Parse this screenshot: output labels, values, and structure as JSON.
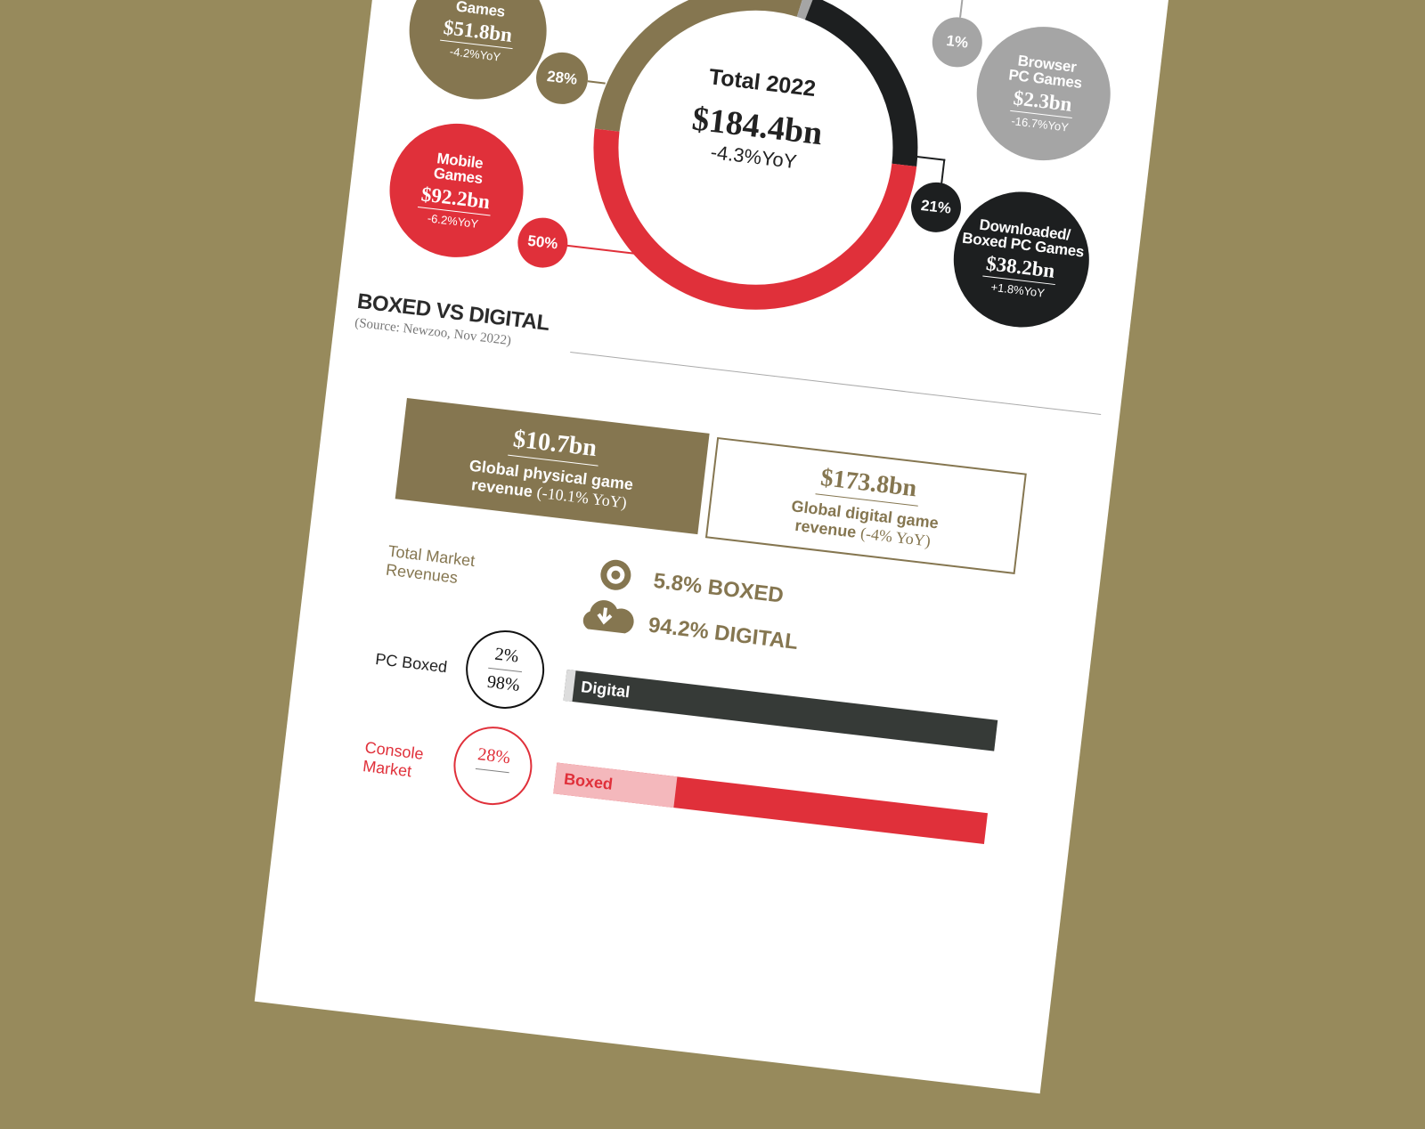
{
  "colors": {
    "background": "#978a5c",
    "gold": "#857650",
    "red": "#e0303a",
    "black": "#1d1f20",
    "gray": "#a5a5a5",
    "bar_dark": "#363a37",
    "pink": "#f4b8bc"
  },
  "donut": {
    "title": "Total 2022",
    "value": "$184.4bn",
    "yoy": "-4.3%YoY",
    "segments": [
      {
        "name": "Console Games",
        "share": 28,
        "color": "#857650"
      },
      {
        "name": "Browser PC Games",
        "share": 1,
        "color": "#a5a5a5"
      },
      {
        "name": "Downloaded/Boxed PC Games",
        "share": 21,
        "color": "#1d1f20"
      },
      {
        "name": "Mobile Games",
        "share": 50,
        "color": "#e0303a"
      }
    ]
  },
  "bubbles": {
    "console": {
      "name": "Games",
      "value": "$51.8bn",
      "yoy": "-4.2%YoY",
      "pct": "28%"
    },
    "mobile": {
      "name": "Mobile Games",
      "value": "$92.2bn",
      "yoy": "-6.2%YoY",
      "pct": "50%"
    },
    "browser": {
      "name": "Browser PC Games",
      "value": "$2.3bn",
      "yoy": "-16.7%YoY",
      "pct": "1%"
    },
    "downloaded": {
      "name": "Downloaded/ Boxed PC Games",
      "value": "$38.2bn",
      "yoy": "+1.8%YoY",
      "pct": "21%"
    }
  },
  "section": {
    "title": "BOXED VS DIGITAL",
    "source": "(Source: Newzoo, Nov 2022)"
  },
  "physical": {
    "value": "$10.7bn",
    "desc": "Global physical game revenue",
    "yoy": "(-10.1% YoY)"
  },
  "digital": {
    "value": "$173.8bn",
    "desc": "Global digital game revenue",
    "yoy": "(-4% YoY)"
  },
  "total_market": {
    "label": "Total Market Revenues",
    "boxed": "5.8% BOXED",
    "digital": "94.2% DIGITAL",
    "boxed_icon": "disc-icon",
    "digital_icon": "cloud-download-icon"
  },
  "pc_boxed": {
    "label": "PC Boxed",
    "boxed_pct": "2%",
    "digital_pct": "98%",
    "bar_label": "Digital",
    "boxed_share": 2
  },
  "console_market": {
    "label": "Console Market",
    "boxed_pct": "28%",
    "bar_label": "Boxed",
    "boxed_share": 28
  }
}
